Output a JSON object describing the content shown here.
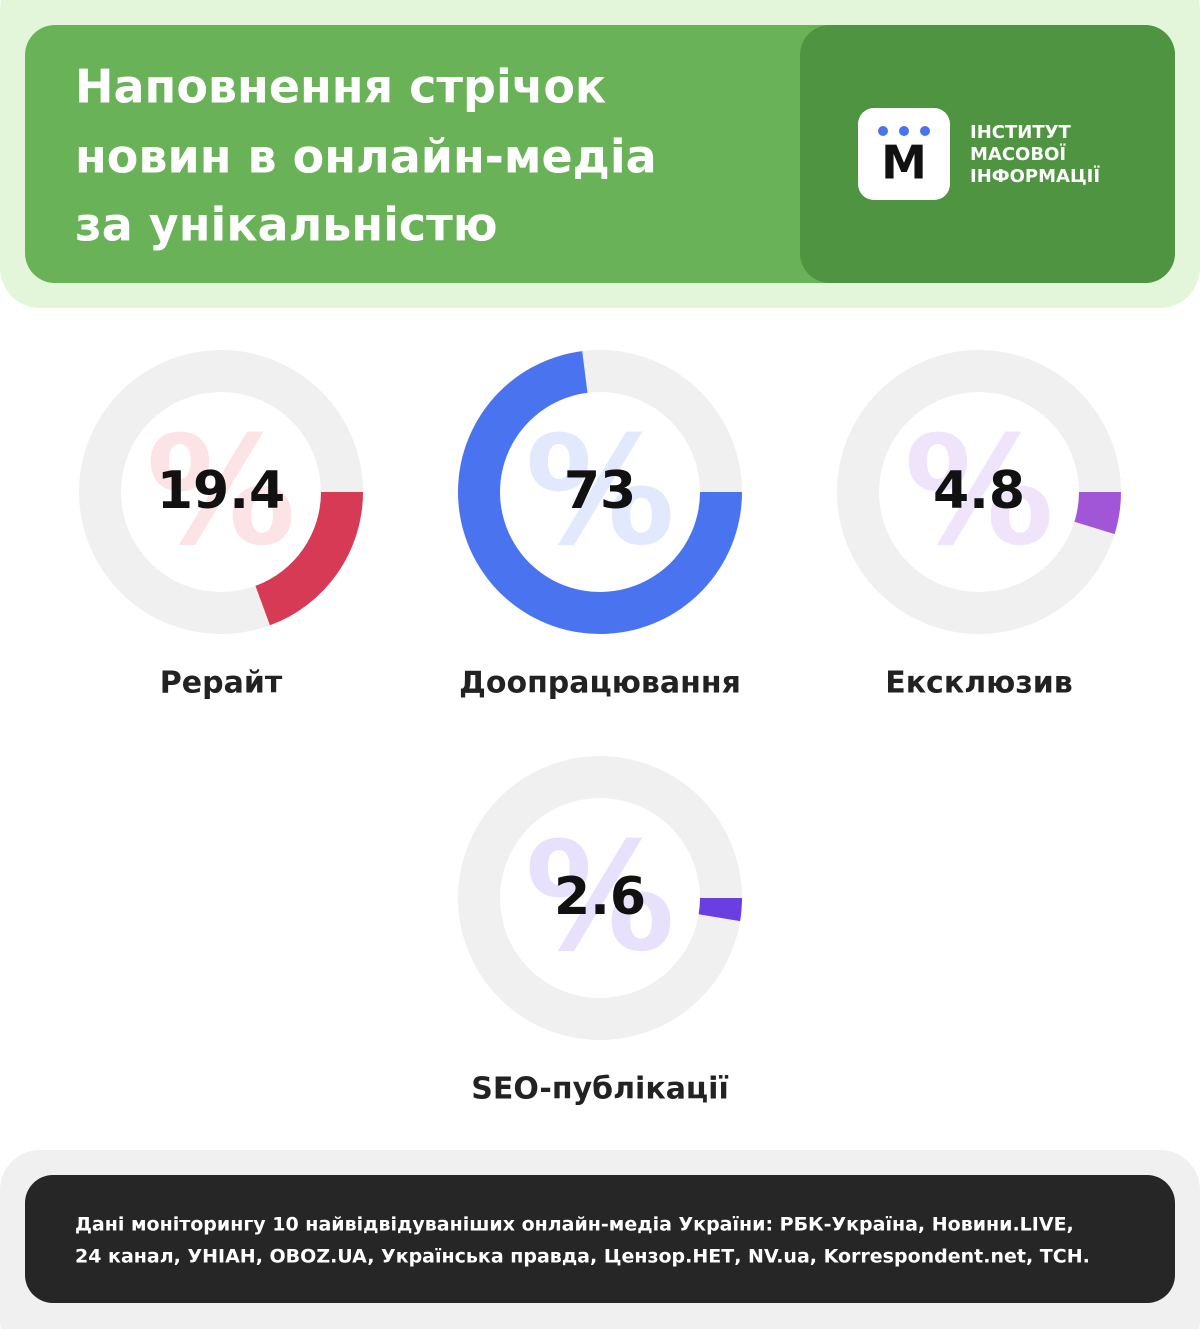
{
  "header": {
    "title_lines": [
      "Наповнення стрічок",
      "новин в онлайн-медіа",
      "за унікальністю"
    ],
    "logo_mark": "М",
    "logo_lines": [
      "ІНСТИТУТ",
      "МАСОВОЇ",
      "ІНФОРМАЦІЇ"
    ]
  },
  "chart_data": [
    {
      "type": "donut",
      "label": "Рерайт",
      "value": 19.4,
      "unit": "%",
      "color": "#d63a55",
      "tint": "#fbe3e6"
    },
    {
      "type": "donut",
      "label": "Доопрацювання",
      "value": 73,
      "unit": "%",
      "color": "#4a73f0",
      "tint": "#e2e9fd"
    },
    {
      "type": "donut",
      "label": "Ексклюзив",
      "value": 4.8,
      "unit": "%",
      "color": "#a156d8",
      "tint": "#f0e4fa"
    },
    {
      "type": "donut",
      "label": "SEO-публікації",
      "value": 2.6,
      "unit": "%",
      "color": "#6a3fe0",
      "tint": "#e8e1fb"
    }
  ],
  "footer": {
    "lines": [
      "Дані моніторингу 10 найвідвідуваніших онлайн-медіа України: РБК-Україна, Новини.LIVE,",
      "24 канал, УНІАН, OBOZ.UA, Українська правда, Цензор.НЕТ, NV.ua, Korrespondent.net, ТСН."
    ]
  }
}
